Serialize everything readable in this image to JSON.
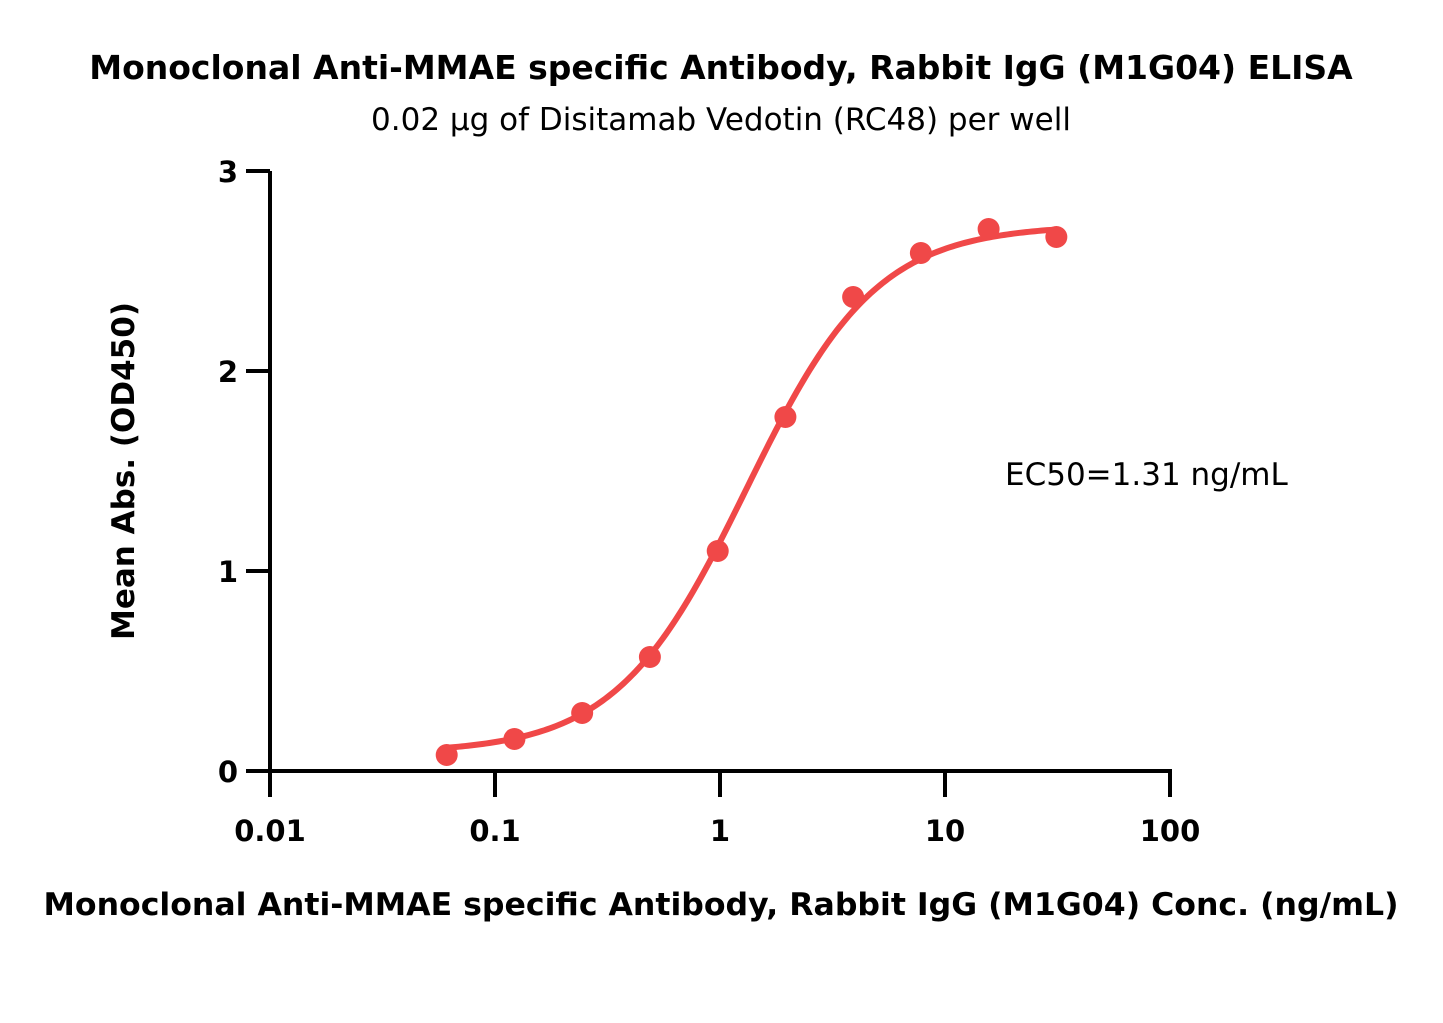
{
  "chart_data": {
    "type": "scatter",
    "title": "Monoclonal Anti-MMAE specific Antibody, Rabbit IgG (M1G04) ELISA",
    "subtitle": "0.02 µg of Disitamab Vedotin (RC48) per well",
    "xlabel": "Monoclonal Anti-MMAE specific Antibody, Rabbit IgG (M1G04) Conc. (ng/mL)",
    "ylabel": "Mean Abs. (OD450)",
    "x_scale": "log",
    "xlim": [
      0.01,
      100
    ],
    "ylim": [
      0,
      3
    ],
    "x_ticks": [
      0.01,
      0.1,
      1,
      10,
      100
    ],
    "x_tick_labels": [
      "0.01",
      "0.1",
      "1",
      "10",
      "100"
    ],
    "y_ticks": [
      0,
      1,
      2,
      3
    ],
    "y_tick_labels": [
      "0",
      "1",
      "2",
      "3"
    ],
    "grid": false,
    "annotation": "EC50=1.31 ng/mL",
    "color": "#f04848",
    "series": [
      {
        "x": [
          0.061,
          0.122,
          0.244,
          0.488,
          0.977,
          1.953,
          3.906,
          7.813,
          15.625,
          31.25
        ],
        "y": [
          0.08,
          0.16,
          0.29,
          0.57,
          1.1,
          1.77,
          2.37,
          2.59,
          2.71,
          2.67
        ]
      }
    ],
    "fit": {
      "model": "4PL",
      "bottom": 0.09,
      "top": 2.73,
      "ec50": 1.31,
      "hill": 1.5,
      "x_range": [
        0.061,
        31.25
      ]
    }
  }
}
